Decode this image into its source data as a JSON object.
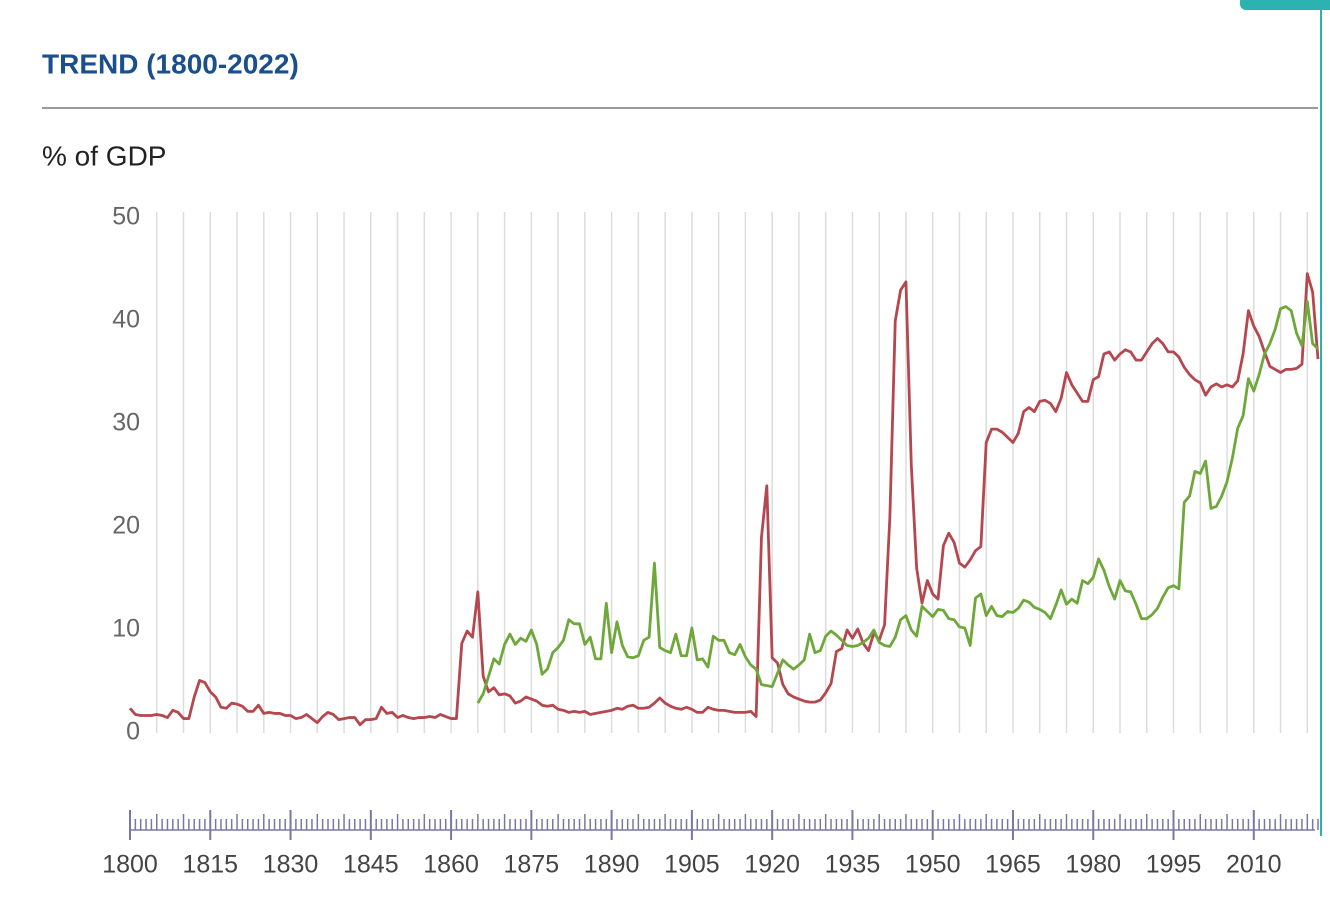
{
  "chart_data": {
    "type": "line",
    "title": "TREND (1800-2022)",
    "y_label": "% of GDP",
    "xlim": [
      1800,
      2022
    ],
    "ylim": [
      0,
      50
    ],
    "yticks": [
      0,
      10,
      20,
      30,
      40,
      50
    ],
    "xticks": [
      1800,
      1815,
      1830,
      1845,
      1860,
      1875,
      1890,
      1905,
      1920,
      1935,
      1950,
      1965,
      1980,
      1995,
      2010
    ],
    "grid": true,
    "x": [
      1800,
      1801,
      1802,
      1803,
      1804,
      1805,
      1806,
      1807,
      1808,
      1809,
      1810,
      1811,
      1812,
      1813,
      1814,
      1815,
      1816,
      1817,
      1818,
      1819,
      1820,
      1821,
      1822,
      1823,
      1824,
      1825,
      1826,
      1827,
      1828,
      1829,
      1830,
      1831,
      1832,
      1833,
      1834,
      1835,
      1836,
      1837,
      1838,
      1839,
      1840,
      1841,
      1842,
      1843,
      1844,
      1845,
      1846,
      1847,
      1848,
      1849,
      1850,
      1851,
      1852,
      1853,
      1854,
      1855,
      1856,
      1857,
      1858,
      1859,
      1860,
      1861,
      1862,
      1863,
      1864,
      1865,
      1866,
      1867,
      1868,
      1869,
      1870,
      1871,
      1872,
      1873,
      1874,
      1875,
      1876,
      1877,
      1878,
      1879,
      1880,
      1881,
      1882,
      1883,
      1884,
      1885,
      1886,
      1887,
      1888,
      1889,
      1890,
      1891,
      1892,
      1893,
      1894,
      1895,
      1896,
      1897,
      1898,
      1899,
      1900,
      1901,
      1902,
      1903,
      1904,
      1905,
      1906,
      1907,
      1908,
      1909,
      1910,
      1911,
      1912,
      1913,
      1914,
      1915,
      1916,
      1917,
      1918,
      1919,
      1920,
      1921,
      1922,
      1923,
      1924,
      1925,
      1926,
      1927,
      1928,
      1929,
      1930,
      1931,
      1932,
      1933,
      1934,
      1935,
      1936,
      1937,
      1938,
      1939,
      1940,
      1941,
      1942,
      1943,
      1944,
      1945,
      1946,
      1947,
      1948,
      1949,
      1950,
      1951,
      1952,
      1953,
      1954,
      1955,
      1956,
      1957,
      1958,
      1959,
      1960,
      1961,
      1962,
      1963,
      1964,
      1965,
      1966,
      1967,
      1968,
      1969,
      1970,
      1971,
      1972,
      1973,
      1974,
      1975,
      1976,
      1977,
      1978,
      1979,
      1980,
      1981,
      1982,
      1983,
      1984,
      1985,
      1986,
      1987,
      1988,
      1989,
      1990,
      1991,
      1992,
      1993,
      1994,
      1995,
      1996,
      1997,
      1998,
      1999,
      2000,
      2001,
      2002,
      2003,
      2004,
      2005,
      2006,
      2007,
      2008,
      2009,
      2010,
      2011,
      2012,
      2013,
      2014,
      2015,
      2016,
      2017,
      2018,
      2019,
      2020,
      2021,
      2022
    ],
    "series": [
      {
        "color": "#b5474f",
        "values": [
          2.4,
          1.8,
          1.7,
          1.7,
          1.7,
          1.8,
          1.7,
          1.5,
          2.2,
          2.0,
          1.4,
          1.4,
          3.5,
          5.1,
          4.9,
          4.0,
          3.5,
          2.5,
          2.4,
          2.9,
          2.8,
          2.6,
          2.1,
          2.1,
          2.7,
          1.9,
          2.0,
          1.9,
          1.9,
          1.7,
          1.7,
          1.4,
          1.5,
          1.8,
          1.4,
          1.0,
          1.6,
          2.0,
          1.8,
          1.3,
          1.4,
          1.5,
          1.5,
          0.8,
          1.3,
          1.3,
          1.4,
          2.5,
          1.9,
          2.0,
          1.5,
          1.7,
          1.5,
          1.4,
          1.5,
          1.5,
          1.6,
          1.5,
          1.8,
          1.6,
          1.4,
          1.4,
          8.7,
          9.9,
          9.3,
          13.7,
          5.5,
          4.0,
          4.4,
          3.7,
          3.8,
          3.6,
          2.9,
          3.1,
          3.5,
          3.3,
          3.1,
          2.7,
          2.6,
          2.7,
          2.3,
          2.2,
          2.0,
          2.1,
          2.0,
          2.1,
          1.8,
          1.9,
          2.0,
          2.1,
          2.2,
          2.4,
          2.3,
          2.6,
          2.7,
          2.4,
          2.4,
          2.5,
          2.9,
          3.4,
          2.9,
          2.6,
          2.4,
          2.3,
          2.5,
          2.3,
          2.0,
          2.0,
          2.5,
          2.3,
          2.2,
          2.2,
          2.1,
          2.0,
          2.0,
          2.0,
          2.1,
          1.6,
          19.0,
          24.0,
          7.3,
          6.8,
          4.7,
          3.8,
          3.5,
          3.3,
          3.1,
          3.0,
          3.0,
          3.2,
          3.9,
          4.8,
          7.9,
          8.2,
          10.0,
          9.2,
          10.1,
          8.7,
          8.0,
          9.7,
          9.0,
          10.5,
          21.0,
          40.0,
          43.0,
          43.8,
          26.0,
          16.0,
          12.6,
          14.8,
          13.5,
          13.0,
          18.2,
          19.4,
          18.5,
          16.5,
          16.1,
          16.8,
          17.7,
          18.1,
          28.2,
          29.5,
          29.5,
          29.2,
          28.7,
          28.2,
          29.1,
          31.2,
          31.6,
          31.2,
          32.2,
          32.3,
          32.0,
          31.2,
          32.5,
          35.0,
          33.8,
          33.0,
          32.2,
          32.2,
          34.3,
          34.6,
          36.8,
          37.0,
          36.2,
          36.8,
          37.2,
          37.0,
          36.2,
          36.2,
          37.0,
          37.8,
          38.3,
          37.8,
          37.0,
          37.0,
          36.5,
          35.5,
          34.8,
          34.3,
          34.0,
          32.8,
          33.6,
          33.9,
          33.6,
          33.8,
          33.6,
          34.2,
          36.8,
          41.0,
          39.5,
          38.5,
          37.0,
          35.6,
          35.3,
          35.0,
          35.3,
          35.3,
          35.4,
          35.8,
          44.6,
          42.8,
          36.3
        ]
      },
      {
        "color": "#6fa83a",
        "values": [
          null,
          null,
          null,
          null,
          null,
          null,
          null,
          null,
          null,
          null,
          null,
          null,
          null,
          null,
          null,
          null,
          null,
          null,
          null,
          null,
          null,
          null,
          null,
          null,
          null,
          null,
          null,
          null,
          null,
          null,
          null,
          null,
          null,
          null,
          null,
          null,
          null,
          null,
          null,
          null,
          null,
          null,
          null,
          null,
          null,
          null,
          null,
          null,
          null,
          null,
          null,
          null,
          null,
          null,
          null,
          null,
          null,
          null,
          null,
          null,
          null,
          null,
          null,
          null,
          null,
          2.9,
          3.8,
          5.5,
          7.2,
          6.7,
          8.6,
          9.6,
          8.6,
          9.2,
          8.9,
          10.0,
          8.6,
          5.7,
          6.2,
          7.8,
          8.3,
          9.0,
          11.0,
          10.6,
          10.6,
          8.6,
          9.3,
          7.2,
          7.2,
          12.6,
          7.8,
          10.8,
          8.5,
          7.4,
          7.3,
          7.5,
          9.0,
          9.3,
          16.5,
          8.3,
          8.0,
          7.8,
          9.6,
          7.5,
          7.5,
          10.2,
          7.1,
          7.2,
          6.4,
          9.4,
          9.0,
          9.0,
          7.8,
          7.6,
          8.6,
          7.4,
          6.6,
          6.2,
          4.7,
          4.6,
          4.5,
          5.8,
          7.1,
          6.6,
          6.2,
          6.6,
          7.1,
          9.6,
          7.8,
          8.0,
          9.4,
          9.9,
          9.5,
          9.0,
          8.5,
          8.4,
          8.5,
          8.8,
          9.2,
          10.0,
          8.8,
          8.5,
          8.4,
          9.3,
          11.0,
          11.4,
          10.0,
          9.4,
          12.3,
          11.8,
          11.3,
          12.0,
          11.9,
          11.1,
          11.0,
          10.3,
          10.2,
          8.5,
          13.1,
          13.5,
          11.4,
          12.3,
          11.4,
          11.3,
          11.8,
          11.7,
          12.1,
          12.9,
          12.7,
          12.2,
          12.0,
          11.7,
          11.1,
          12.4,
          13.9,
          12.5,
          13.0,
          12.6,
          14.8,
          14.5,
          15.1,
          16.9,
          15.8,
          14.2,
          13.0,
          14.8,
          13.8,
          13.7,
          12.5,
          11.1,
          11.1,
          11.5,
          12.1,
          13.2,
          14.1,
          14.3,
          14.0,
          22.4,
          23.0,
          25.4,
          25.2,
          26.4,
          21.8,
          22.0,
          23.0,
          24.4,
          26.7,
          29.6,
          30.8,
          34.4,
          33.2,
          34.8,
          36.8,
          37.8,
          39.2,
          41.2,
          41.4,
          41.0,
          38.8,
          37.6,
          41.9,
          37.8,
          37.3
        ]
      }
    ]
  }
}
